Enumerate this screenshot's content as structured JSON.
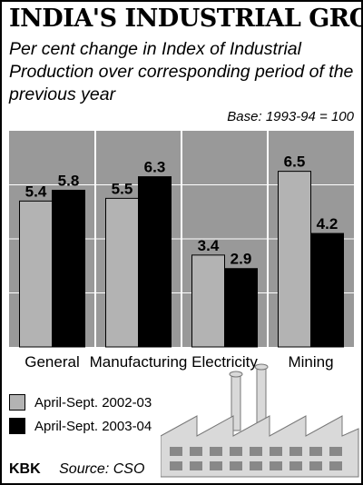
{
  "header": {
    "title": "INDIA'S INDUSTRIAL GROWTH",
    "subtitle": "Per cent change in Index of Industrial Production over corresponding period of the previous year",
    "base_note": "Base: 1993-94 = 100"
  },
  "chart_data": {
    "type": "bar",
    "categories": [
      "General",
      "Manufacturing",
      "Electricity",
      "Mining"
    ],
    "series": [
      {
        "name": "April-Sept. 2002-03",
        "values": [
          5.4,
          5.5,
          3.4,
          6.5
        ],
        "color": "#b3b3b3"
      },
      {
        "name": "April-Sept. 2003-04",
        "values": [
          5.8,
          6.3,
          2.9,
          4.2
        ],
        "color": "#000000"
      }
    ],
    "ylim": [
      0,
      8
    ],
    "grid": true,
    "legend": "bottom-left",
    "background": "#999999"
  },
  "footer": {
    "brand": "KBK",
    "source": "Source: CSO"
  }
}
